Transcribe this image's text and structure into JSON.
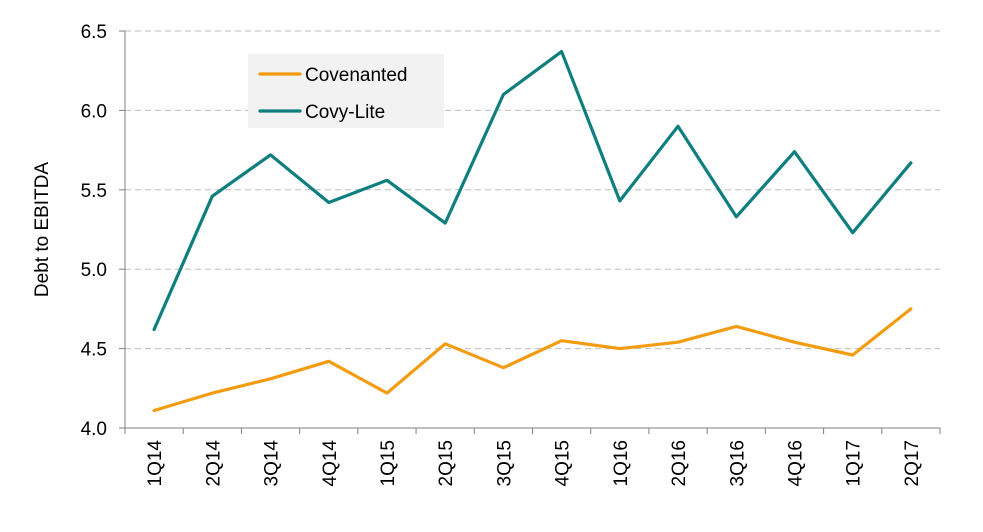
{
  "chart_data": {
    "type": "line",
    "title": "",
    "xlabel": "",
    "ylabel": "Debt to EBITDA",
    "categories": [
      "1Q14",
      "2Q14",
      "3Q14",
      "4Q14",
      "1Q15",
      "2Q15",
      "3Q15",
      "4Q15",
      "1Q16",
      "2Q16",
      "3Q16",
      "4Q16",
      "1Q17",
      "2Q17"
    ],
    "ylim": [
      4.0,
      6.5
    ],
    "yticks": [
      "4.0",
      "4.5",
      "5.0",
      "5.5",
      "6.0",
      "6.5"
    ],
    "grid": "horizontal dashed",
    "legend_position": "top-left",
    "series": [
      {
        "name": "Covenanted",
        "color": "#f39c12",
        "values": [
          4.11,
          4.22,
          4.31,
          4.42,
          4.22,
          4.53,
          4.38,
          4.55,
          4.5,
          4.54,
          4.64,
          4.54,
          4.46,
          4.75
        ]
      },
      {
        "name": "Covy-Lite",
        "color": "#0e7f7e",
        "values": [
          4.62,
          5.46,
          5.72,
          5.42,
          5.56,
          5.29,
          6.1,
          6.37,
          5.43,
          5.9,
          5.33,
          5.74,
          5.23,
          5.67
        ]
      }
    ]
  }
}
